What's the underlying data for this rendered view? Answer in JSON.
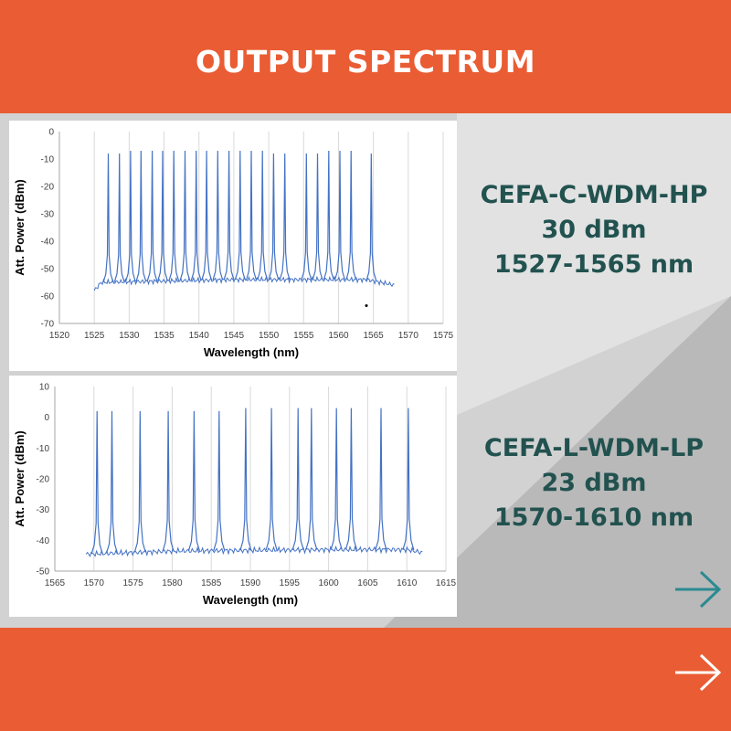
{
  "page": {
    "title": "OUTPUT SPECTRUM"
  },
  "colors": {
    "header_bg": "#ea5c33",
    "text_teal": "#22524f",
    "arrow_teal": "#2a8a91",
    "trace": "#4472c4"
  },
  "products": [
    {
      "name": "CEFA-C-WDM-HP",
      "power": "30 dBm",
      "range": "1527-1565 nm"
    },
    {
      "name": "CEFA-L-WDM-LP",
      "power": "23 dBm",
      "range": "1570-1610 nm"
    }
  ],
  "icons": {
    "next_teal": "arrow-right-icon",
    "next_white": "arrow-right-icon"
  },
  "chart_data": [
    {
      "type": "line",
      "xlabel": "Wavelength (nm)",
      "ylabel": "Att. Power (dBm)",
      "xlim": [
        1520,
        1575
      ],
      "ylim": [
        -70,
        0
      ],
      "xticks": [
        1520,
        1525,
        1530,
        1535,
        1540,
        1545,
        1550,
        1555,
        1560,
        1565,
        1570,
        1575
      ],
      "yticks": [
        0,
        -10,
        -20,
        -30,
        -40,
        -50,
        -60,
        -70
      ],
      "grid": "vertical",
      "x_start": 1525,
      "x_end": 1568,
      "noise_floor": [
        [
          1525,
          -58
        ],
        [
          1526,
          -55
        ],
        [
          1545,
          -54
        ],
        [
          1564,
          -54
        ],
        [
          1568,
          -56
        ]
      ],
      "peaks": [
        {
          "x": 1527.0,
          "y": -8
        },
        {
          "x": 1528.6,
          "y": -8
        },
        {
          "x": 1530.2,
          "y": -7
        },
        {
          "x": 1531.7,
          "y": -7
        },
        {
          "x": 1533.3,
          "y": -7
        },
        {
          "x": 1534.8,
          "y": -7
        },
        {
          "x": 1536.4,
          "y": -7
        },
        {
          "x": 1538.0,
          "y": -7
        },
        {
          "x": 1539.6,
          "y": -7
        },
        {
          "x": 1541.1,
          "y": -7
        },
        {
          "x": 1542.7,
          "y": -7
        },
        {
          "x": 1544.3,
          "y": -7
        },
        {
          "x": 1545.9,
          "y": -7
        },
        {
          "x": 1547.5,
          "y": -7
        },
        {
          "x": 1549.1,
          "y": -7
        },
        {
          "x": 1550.7,
          "y": -8
        },
        {
          "x": 1552.3,
          "y": -8
        },
        {
          "x": 1555.4,
          "y": -8
        },
        {
          "x": 1557.0,
          "y": -8
        },
        {
          "x": 1558.6,
          "y": -7
        },
        {
          "x": 1560.2,
          "y": -7
        },
        {
          "x": 1561.8,
          "y": -7
        },
        {
          "x": 1564.7,
          "y": -8
        }
      ],
      "stray_points": [
        {
          "x": 1564,
          "y": -63.5
        }
      ]
    },
    {
      "type": "line",
      "xlabel": "Wavelength (nm)",
      "ylabel": "Att. Power (dBm)",
      "xlim": [
        1565,
        1615
      ],
      "ylim": [
        -50,
        10
      ],
      "xticks": [
        1565,
        1570,
        1575,
        1580,
        1585,
        1590,
        1595,
        1600,
        1605,
        1610,
        1615
      ],
      "yticks": [
        10,
        0,
        -10,
        -20,
        -30,
        -40,
        -50
      ],
      "grid": "vertical",
      "x_start": 1569,
      "x_end": 1612,
      "noise_floor": [
        [
          1569,
          -44.5
        ],
        [
          1580,
          -43.5
        ],
        [
          1600,
          -43
        ],
        [
          1610,
          -43
        ],
        [
          1612,
          -44
        ]
      ],
      "peaks": [
        {
          "x": 1570.4,
          "y": 2
        },
        {
          "x": 1572.3,
          "y": 2
        },
        {
          "x": 1575.9,
          "y": 2
        },
        {
          "x": 1579.5,
          "y": 2
        },
        {
          "x": 1582.8,
          "y": 2
        },
        {
          "x": 1586.0,
          "y": 2
        },
        {
          "x": 1589.4,
          "y": 3
        },
        {
          "x": 1592.7,
          "y": 3
        },
        {
          "x": 1596.1,
          "y": 3
        },
        {
          "x": 1597.8,
          "y": 3
        },
        {
          "x": 1601.0,
          "y": 3
        },
        {
          "x": 1602.9,
          "y": 3
        },
        {
          "x": 1606.7,
          "y": 3
        },
        {
          "x": 1610.2,
          "y": 3
        }
      ],
      "stray_points": []
    }
  ]
}
